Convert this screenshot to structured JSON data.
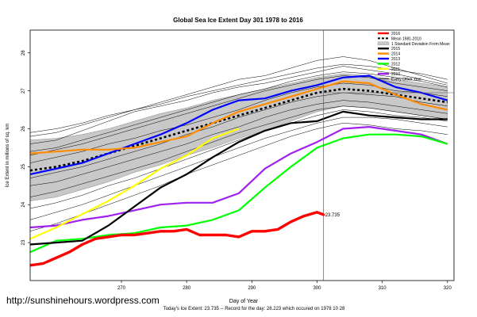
{
  "chart_data": {
    "type": "line",
    "title": "Global Sea Ice Extent Day 301 1978 to 2016",
    "xlabel": "Day of Year",
    "ylabel": "Ice Extent in millions of sq. km",
    "xlim": [
      256,
      321
    ],
    "ylim": [
      22,
      28.6
    ],
    "xticks": [
      270,
      280,
      290,
      300,
      310,
      320
    ],
    "yticks": [
      23,
      24,
      25,
      26,
      27,
      28
    ],
    "current_day": 301,
    "current_value": 23.735,
    "current_value_label": "23.735",
    "footer": "Today's Ice Extent: 23.735 -- Record for the day: 28.223 which occured on 1978 10 28",
    "watermark": "http://sunshinehours.wordpress.com",
    "colors": {
      "y2016": "#ff0000",
      "mean": "#000000",
      "band": "#c8c8c8",
      "y2015": "#000000",
      "y2014": "#ff8c00",
      "y2013": "#0000ff",
      "y2012": "#00ff00",
      "y2011": "#ffff00",
      "y2010": "#a020f0",
      "others": "#000000"
    },
    "legend": [
      {
        "label": "2016",
        "key": "y2016"
      },
      {
        "label": "Mean 1981-2010",
        "key": "mean"
      },
      {
        "label": "1 Standard Deviation From Mean",
        "key": "band"
      },
      {
        "label": "2015",
        "key": "y2015"
      },
      {
        "label": "2014",
        "key": "y2014"
      },
      {
        "label": "2013",
        "key": "y2013"
      },
      {
        "label": "2012",
        "key": "y2012"
      },
      {
        "label": "2011",
        "key": "y2011"
      },
      {
        "label": "2010",
        "key": "y2010"
      },
      {
        "label": "Every Other Year",
        "key": "others"
      }
    ],
    "mean": {
      "x": [
        256,
        260,
        264,
        268,
        272,
        276,
        280,
        284,
        288,
        292,
        296,
        300,
        304,
        308,
        312,
        316,
        320
      ],
      "y": [
        24.9,
        25.0,
        25.15,
        25.35,
        25.55,
        25.75,
        25.95,
        26.15,
        26.35,
        26.55,
        26.75,
        26.95,
        27.05,
        27.0,
        26.9,
        26.8,
        26.7
      ]
    },
    "band": {
      "x": [
        256,
        260,
        264,
        268,
        272,
        276,
        280,
        284,
        288,
        292,
        296,
        300,
        304,
        308,
        312,
        316,
        320
      ],
      "upper": [
        25.7,
        25.75,
        25.85,
        26.0,
        26.2,
        26.4,
        26.55,
        26.75,
        26.9,
        27.05,
        27.2,
        27.35,
        27.45,
        27.4,
        27.3,
        27.2,
        27.1
      ],
      "lower": [
        24.1,
        24.2,
        24.4,
        24.6,
        24.85,
        25.05,
        25.3,
        25.5,
        25.75,
        25.95,
        26.2,
        26.45,
        26.6,
        26.55,
        26.45,
        26.35,
        26.25
      ]
    },
    "series": [
      {
        "name": "2016",
        "key": "y2016",
        "x": [
          256,
          258,
          260,
          262,
          264,
          266,
          268,
          270,
          272,
          274,
          276,
          278,
          280,
          282,
          284,
          286,
          288,
          290,
          292,
          294,
          296,
          298,
          300,
          301
        ],
        "y": [
          22.4,
          22.45,
          22.6,
          22.75,
          22.95,
          23.1,
          23.15,
          23.2,
          23.2,
          23.25,
          23.3,
          23.3,
          23.35,
          23.2,
          23.2,
          23.2,
          23.15,
          23.3,
          23.3,
          23.35,
          23.55,
          23.7,
          23.8,
          23.735
        ]
      },
      {
        "name": "2015",
        "key": "y2015",
        "x": [
          256,
          260,
          264,
          268,
          272,
          276,
          280,
          284,
          288,
          292,
          296,
          300,
          304,
          308,
          312,
          316,
          320
        ],
        "y": [
          22.95,
          23.0,
          23.05,
          23.45,
          23.95,
          24.45,
          24.8,
          25.25,
          25.65,
          25.95,
          26.15,
          26.2,
          26.45,
          26.35,
          26.3,
          26.25,
          26.25
        ]
      },
      {
        "name": "2014",
        "key": "y2014",
        "x": [
          256,
          260,
          264,
          268,
          272,
          276,
          280,
          284,
          288,
          292,
          296,
          300,
          304,
          308,
          312,
          316,
          320
        ],
        "y": [
          25.35,
          25.4,
          25.45,
          25.45,
          25.5,
          25.65,
          25.8,
          26.15,
          26.45,
          26.65,
          26.85,
          27.05,
          27.25,
          27.2,
          26.9,
          26.65,
          26.5
        ]
      },
      {
        "name": "2013",
        "key": "y2013",
        "x": [
          256,
          260,
          264,
          268,
          272,
          276,
          280,
          284,
          288,
          292,
          296,
          300,
          304,
          308,
          312,
          316,
          320
        ],
        "y": [
          24.8,
          24.95,
          25.1,
          25.35,
          25.6,
          25.85,
          26.15,
          26.5,
          26.75,
          26.8,
          27.0,
          27.15,
          27.35,
          27.4,
          27.1,
          26.95,
          26.75
        ]
      },
      {
        "name": "2012",
        "key": "y2012",
        "x": [
          256,
          260,
          264,
          268,
          272,
          276,
          280,
          284,
          288,
          292,
          296,
          300,
          304,
          308,
          312,
          316,
          320
        ],
        "y": [
          22.75,
          23.05,
          23.1,
          23.2,
          23.25,
          23.4,
          23.45,
          23.6,
          23.85,
          24.45,
          25.0,
          25.5,
          25.75,
          25.85,
          25.85,
          25.8,
          25.6
        ]
      },
      {
        "name": "2011",
        "key": "y2011",
        "x": [
          256,
          260,
          264,
          268,
          272,
          276,
          280,
          284,
          288
        ],
        "y": [
          23.1,
          23.4,
          23.75,
          24.1,
          24.5,
          24.95,
          25.3,
          25.75,
          26.0
        ]
      },
      {
        "name": "2010",
        "key": "y2010",
        "x": [
          256,
          260,
          264,
          268,
          272,
          276,
          280,
          284,
          288,
          292,
          296,
          300,
          304,
          308,
          312,
          316,
          320
        ],
        "y": [
          23.4,
          23.45,
          23.6,
          23.7,
          23.85,
          24.0,
          24.05,
          24.05,
          24.3,
          24.95,
          25.35,
          25.65,
          26.0,
          26.05,
          25.95,
          25.85,
          25.6
        ]
      }
    ],
    "other_years": [
      {
        "y": [
          25.8,
          25.9,
          26.1,
          26.3,
          26.5,
          26.7,
          26.9,
          27.1,
          27.3,
          27.4,
          27.6,
          27.8,
          27.9,
          27.8,
          27.6,
          27.4,
          27.2
        ]
      },
      {
        "y": [
          25.6,
          25.7,
          25.95,
          26.2,
          26.45,
          26.6,
          26.75,
          26.95,
          27.1,
          27.2,
          27.35,
          27.5,
          27.65,
          27.55,
          27.45,
          27.3,
          27.15
        ]
      },
      {
        "y": [
          25.3,
          25.45,
          25.6,
          25.8,
          26.0,
          26.2,
          26.4,
          26.6,
          26.8,
          27.0,
          27.15,
          27.3,
          27.4,
          27.35,
          27.2,
          27.1,
          27.0
        ]
      },
      {
        "y": [
          25.1,
          25.25,
          25.4,
          25.6,
          25.75,
          25.95,
          26.1,
          26.3,
          26.5,
          26.75,
          26.95,
          27.1,
          27.2,
          27.15,
          27.0,
          26.95,
          26.85
        ]
      },
      {
        "y": [
          24.7,
          24.85,
          25.0,
          25.2,
          25.4,
          25.6,
          25.85,
          26.05,
          26.3,
          26.5,
          26.7,
          26.85,
          26.95,
          26.9,
          26.85,
          26.7,
          26.6
        ]
      },
      {
        "y": [
          24.5,
          24.6,
          24.8,
          25.0,
          25.2,
          25.4,
          25.6,
          25.85,
          26.05,
          26.3,
          26.5,
          26.65,
          26.75,
          26.7,
          26.6,
          26.5,
          26.4
        ]
      },
      {
        "y": [
          24.2,
          24.35,
          24.55,
          24.75,
          24.95,
          25.15,
          25.4,
          25.65,
          25.9,
          26.1,
          26.3,
          26.5,
          26.6,
          26.55,
          26.45,
          26.35,
          26.25
        ]
      },
      {
        "y": [
          23.9,
          24.05,
          24.25,
          24.5,
          24.7,
          24.95,
          25.2,
          25.45,
          25.7,
          25.95,
          26.15,
          26.35,
          26.5,
          26.45,
          26.35,
          26.3,
          26.2
        ]
      },
      {
        "y": [
          23.6,
          23.8,
          24.0,
          24.25,
          24.5,
          24.75,
          25.0,
          25.25,
          25.5,
          25.75,
          25.95,
          26.15,
          26.3,
          26.3,
          26.25,
          26.15,
          26.05
        ]
      },
      {
        "y": [
          23.3,
          23.5,
          23.75,
          24.0,
          24.25,
          24.5,
          24.8,
          25.05,
          25.3,
          25.55,
          25.8,
          26.0,
          26.15,
          26.1,
          26.0,
          25.95,
          25.85
        ]
      },
      {
        "y": [
          25.9,
          26.0,
          26.15,
          26.35,
          26.5,
          26.65,
          26.85,
          27.0,
          27.15,
          27.3,
          27.45,
          27.6,
          27.7,
          27.65,
          27.55,
          27.45,
          27.3
        ]
      },
      {
        "y": [
          25.4,
          25.5,
          25.7,
          25.9,
          26.1,
          26.3,
          26.5,
          26.7,
          26.9,
          27.05,
          27.25,
          27.4,
          27.5,
          27.45,
          27.35,
          27.25,
          27.1
        ]
      }
    ]
  }
}
